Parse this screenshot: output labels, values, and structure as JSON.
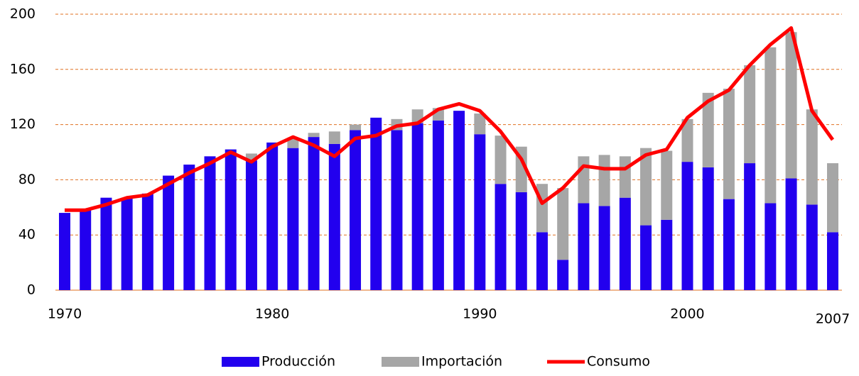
{
  "chart_data": {
    "type": "bar",
    "stacked": true,
    "categories": [
      "1970",
      null,
      null,
      null,
      null,
      null,
      null,
      null,
      null,
      null,
      "1980",
      null,
      null,
      null,
      null,
      null,
      null,
      null,
      null,
      null,
      "1990",
      null,
      null,
      null,
      null,
      null,
      null,
      null,
      null,
      null,
      "2000",
      null,
      null,
      null,
      null,
      null,
      null,
      "2007"
    ],
    "series": [
      {
        "name": "Producción",
        "type": "bar",
        "color": "#2200ee",
        "values": [
          56,
          58,
          67,
          67,
          70,
          83,
          91,
          97,
          102,
          94,
          107,
          103,
          111,
          106,
          116,
          125,
          116,
          121,
          123,
          130,
          113,
          77,
          71,
          42,
          22,
          63,
          61,
          67,
          47,
          51,
          93,
          89,
          66,
          92,
          63,
          81,
          62,
          42
        ]
      },
      {
        "name": "Importación",
        "type": "bar",
        "color": "#a6a6a6",
        "values": [
          0,
          0,
          0,
          0,
          0,
          0,
          0,
          0,
          0,
          5,
          0,
          7,
          3,
          9,
          4,
          0,
          8,
          10,
          9,
          0,
          15,
          35,
          33,
          35,
          52,
          34,
          37,
          30,
          56,
          50,
          31,
          54,
          80,
          71,
          113,
          106,
          69,
          50
        ]
      },
      {
        "name": "Consumo",
        "type": "line",
        "color": "#ff0000",
        "values": [
          58,
          58,
          62,
          67,
          69,
          77,
          85,
          92,
          100,
          93,
          104,
          111,
          105,
          97,
          110,
          112,
          119,
          121,
          131,
          135,
          130,
          115,
          95,
          63,
          74,
          90,
          88,
          88,
          98,
          102,
          125,
          137,
          145,
          163,
          178,
          190,
          130,
          109
        ]
      }
    ],
    "ylim": [
      0,
      200
    ],
    "yticks": [
      0,
      40,
      80,
      120,
      160,
      200
    ],
    "grid": true,
    "legend": "bottom"
  }
}
